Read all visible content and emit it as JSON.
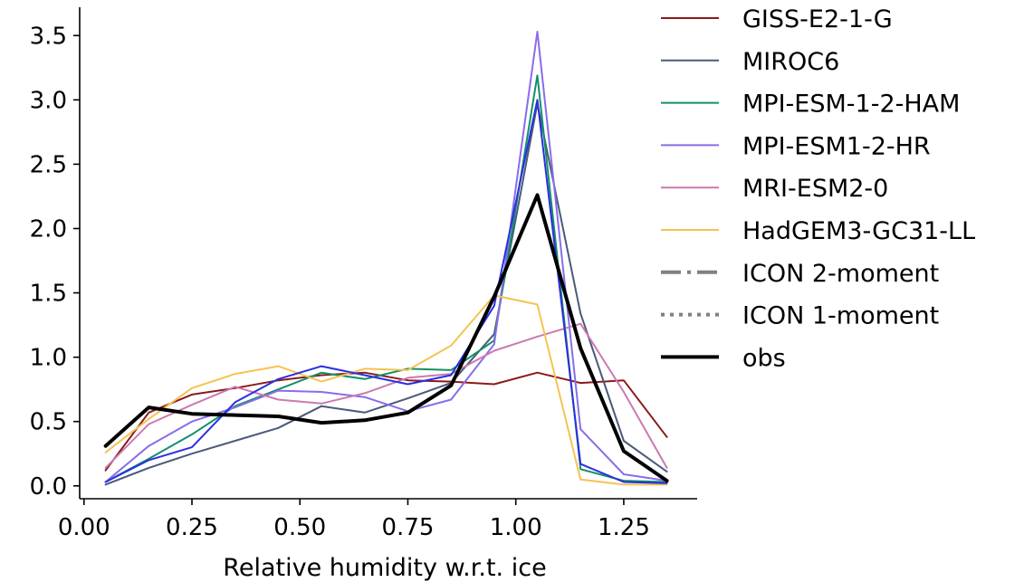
{
  "chart_data": {
    "type": "line",
    "title": "",
    "xlabel": "Relative humidity w.r.t. ice",
    "ylabel": "",
    "xlim": [
      -0.01,
      1.42
    ],
    "ylim": [
      -0.1,
      3.72
    ],
    "xticks": [
      0.0,
      0.25,
      0.5,
      0.75,
      1.0,
      1.25
    ],
    "xtick_labels": [
      "0.00",
      "0.25",
      "0.50",
      "0.75",
      "1.00",
      "1.25"
    ],
    "yticks": [
      0.0,
      0.5,
      1.0,
      1.5,
      2.0,
      2.5,
      3.0,
      3.5
    ],
    "ytick_labels": [
      "0.0",
      "0.5",
      "1.0",
      "1.5",
      "2.0",
      "2.5",
      "3.0",
      "3.5"
    ],
    "grid": false,
    "legend_position": "right",
    "x": [
      0.05,
      0.15,
      0.25,
      0.35,
      0.45,
      0.55,
      0.65,
      0.75,
      0.85,
      0.95,
      1.05,
      1.15,
      1.25,
      1.35
    ],
    "series": [
      {
        "name": "GISS-E2-1-G",
        "color": "#8b1a1a",
        "width": 2,
        "dash": "solid",
        "values": [
          0.12,
          0.57,
          0.71,
          0.76,
          0.82,
          0.86,
          0.88,
          0.82,
          0.81,
          0.79,
          0.88,
          0.8,
          0.82,
          0.38
        ]
      },
      {
        "name": "MIROC6",
        "color": "#4a5a78",
        "width": 2,
        "dash": "solid",
        "values": [
          0.01,
          0.14,
          0.25,
          0.35,
          0.45,
          0.62,
          0.57,
          0.68,
          0.8,
          1.18,
          2.97,
          1.34,
          0.35,
          0.11
        ]
      },
      {
        "name": "MPI-ESM-1-2-HAM",
        "color": "#139068",
        "width": 2,
        "dash": "solid",
        "values": [
          0.03,
          0.21,
          0.4,
          0.62,
          0.75,
          0.88,
          0.83,
          0.91,
          0.9,
          1.13,
          3.19,
          0.13,
          0.04,
          0.03
        ]
      },
      {
        "name": "MPI-ESM1-2-HR",
        "color": "#8a6cea",
        "width": 2,
        "dash": "solid",
        "values": [
          0.03,
          0.31,
          0.5,
          0.61,
          0.74,
          0.73,
          0.69,
          0.58,
          0.67,
          1.1,
          3.53,
          0.44,
          0.09,
          0.04
        ]
      },
      {
        "name": "MRI-ESM2-0",
        "color": "#cc79b0",
        "width": 2,
        "dash": "solid",
        "values": [
          0.14,
          0.48,
          0.63,
          0.77,
          0.67,
          0.64,
          0.72,
          0.84,
          0.87,
          1.05,
          1.16,
          1.26,
          0.73,
          0.14
        ]
      },
      {
        "name": "HadGEM3-GC31-LL",
        "color": "#f4c352",
        "width": 2,
        "dash": "solid",
        "values": [
          0.26,
          0.52,
          0.76,
          0.87,
          0.93,
          0.81,
          0.91,
          0.9,
          1.09,
          1.48,
          1.41,
          0.05,
          0.01,
          0.01
        ]
      },
      {
        "name": "",
        "color": "#2a2fe0",
        "width": 2,
        "dash": "solid",
        "values": [
          0.03,
          0.2,
          0.3,
          0.65,
          0.83,
          0.93,
          0.86,
          0.79,
          0.86,
          1.4,
          3.0,
          0.17,
          0.03,
          0.02
        ]
      },
      {
        "name": "obs",
        "color": "#000000",
        "width": 4,
        "dash": "solid",
        "values": [
          0.31,
          0.61,
          0.56,
          0.55,
          0.54,
          0.49,
          0.51,
          0.57,
          0.78,
          1.47,
          2.26,
          1.07,
          0.27,
          0.04
        ]
      }
    ],
    "legend": [
      {
        "label": "GISS-E2-1-G",
        "color": "#8b1a1a",
        "style": "solid",
        "width": 2
      },
      {
        "label": "MIROC6",
        "color": "#4a5a78",
        "style": "solid",
        "width": 2
      },
      {
        "label": "MPI-ESM-1-2-HAM",
        "color": "#139068",
        "style": "solid",
        "width": 2
      },
      {
        "label": "MPI-ESM1-2-HR",
        "color": "#8a6cea",
        "style": "solid",
        "width": 2
      },
      {
        "label": "MRI-ESM2-0",
        "color": "#cc79b0",
        "style": "solid",
        "width": 2
      },
      {
        "label": "HadGEM3-GC31-LL",
        "color": "#f4c352",
        "style": "solid",
        "width": 2
      },
      {
        "label": "ICON 2-moment",
        "color": "#808080",
        "style": "dashdot",
        "width": 4
      },
      {
        "label": "ICON 1-moment",
        "color": "#808080",
        "style": "dotted",
        "width": 4
      },
      {
        "label": "obs",
        "color": "#000000",
        "style": "solid",
        "width": 4
      }
    ]
  }
}
